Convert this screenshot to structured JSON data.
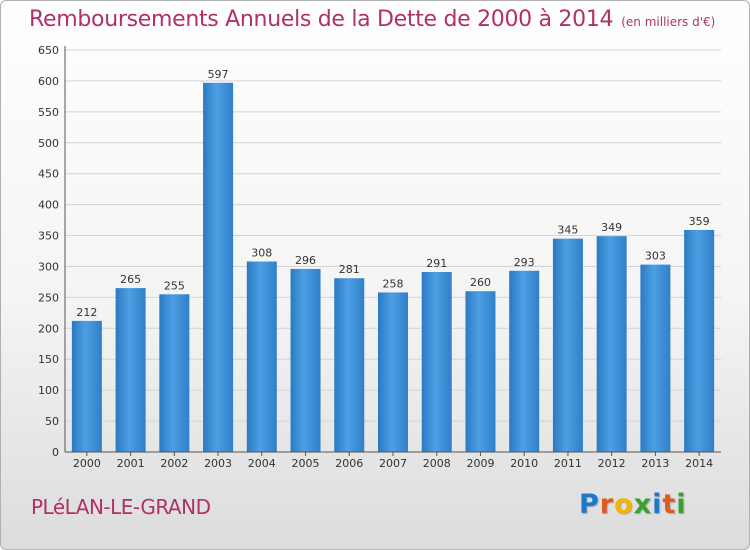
{
  "title": "Remboursements Annuels de la Dette de 2000 à 2014",
  "subtitle": "(en milliers d'€)",
  "commune": "PLéLAN-LE-GRAND",
  "brand": {
    "letters": [
      {
        "char": "P",
        "color": "#1f77c9"
      },
      {
        "char": "r",
        "color": "#e05a1e"
      },
      {
        "char": "o",
        "color": "#f2b400"
      },
      {
        "char": "x",
        "color": "#3aa030"
      },
      {
        "char": "i",
        "color": "#1f77c9"
      },
      {
        "char": "t",
        "color": "#e05a1e"
      },
      {
        "char": "i",
        "color": "#3aa030"
      }
    ]
  },
  "chart_data": {
    "type": "bar",
    "categories": [
      "2000",
      "2001",
      "2002",
      "2003",
      "2004",
      "2005",
      "2006",
      "2007",
      "2008",
      "2009",
      "2010",
      "2011",
      "2012",
      "2013",
      "2014"
    ],
    "values": [
      212,
      265,
      255,
      597,
      308,
      296,
      281,
      258,
      291,
      260,
      293,
      345,
      349,
      303,
      359
    ],
    "ylim": [
      0,
      650
    ],
    "yticks": [
      0,
      50,
      100,
      150,
      200,
      250,
      300,
      350,
      400,
      450,
      500,
      550,
      600,
      650
    ],
    "grid": true,
    "bar_color": "#3d8fd6",
    "grid_color": "#d4d4d4"
  }
}
